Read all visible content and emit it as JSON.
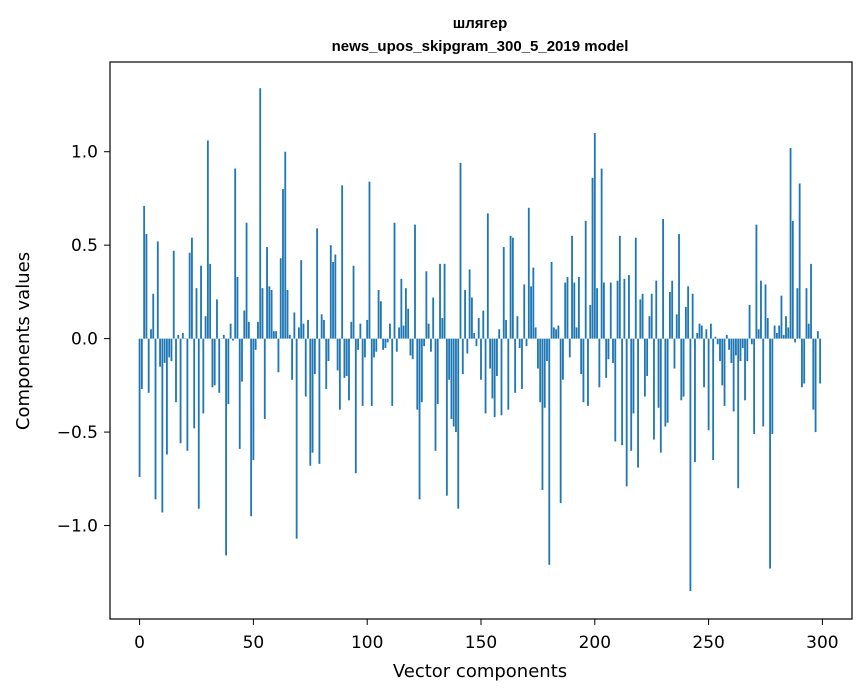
{
  "chart_data": {
    "type": "bar",
    "title": "шлягер",
    "subtitle": "news_upos_skipgram_300_5_2019 model",
    "xlabel": "Vector components",
    "ylabel": "Components values",
    "xlim": [
      -13,
      313
    ],
    "ylim": [
      -1.5,
      1.48
    ],
    "xticks": [
      0,
      50,
      100,
      150,
      200,
      250,
      300
    ],
    "xtick_labels": [
      "0",
      "50",
      "100",
      "150",
      "200",
      "250",
      "300"
    ],
    "yticks": [
      -1.0,
      -0.5,
      0.0,
      0.5,
      1.0
    ],
    "ytick_labels": [
      "−1.0",
      "−0.5",
      "0.0",
      "0.5",
      "1.0"
    ],
    "bar_color": "#1f77b4",
    "values": [
      -0.74,
      -0.27,
      0.71,
      0.56,
      -0.29,
      0.05,
      0.24,
      -0.86,
      0.52,
      -0.15,
      -0.93,
      -0.13,
      -0.62,
      -0.1,
      -0.12,
      0.47,
      -0.34,
      0.02,
      -0.56,
      0.03,
      0.0,
      -0.6,
      0.46,
      0.54,
      -0.48,
      0.27,
      -0.91,
      0.39,
      -0.4,
      0.12,
      1.06,
      0.4,
      -0.26,
      -0.25,
      0.21,
      -0.29,
      0.0,
      0.02,
      -1.16,
      -0.35,
      0.08,
      -0.01,
      0.91,
      0.33,
      -0.59,
      -0.23,
      0.15,
      0.62,
      0.09,
      -0.95,
      -0.65,
      -0.06,
      0.09,
      1.34,
      0.27,
      -0.43,
      0.49,
      0.28,
      0.26,
      0.04,
      0.04,
      -0.18,
      0.43,
      0.8,
      1.0,
      0.26,
      0.02,
      -0.22,
      0.14,
      -1.07,
      0.06,
      0.42,
      0.08,
      -0.31,
      0.1,
      -0.68,
      -0.61,
      -0.19,
      0.59,
      -0.67,
      0.13,
      0.1,
      -0.27,
      -0.12,
      0.5,
      0.41,
      0.45,
      -0.17,
      -0.38,
      0.82,
      -0.21,
      -0.2,
      -0.33,
      0.09,
      0.39,
      -0.72,
      -0.06,
      0.08,
      -0.36,
      -0.1,
      0.1,
      0.84,
      -0.36,
      -0.1,
      -0.07,
      0.26,
      0.2,
      -0.06,
      -0.05,
      -0.02,
      0.08,
      -0.36,
      0.62,
      -0.07,
      0.06,
      0.32,
      0.07,
      0.27,
      0.16,
      -0.09,
      -0.11,
      0.61,
      -0.38,
      -0.86,
      -0.34,
      -0.04,
      0.36,
      0.08,
      -0.07,
      0.22,
      -0.6,
      -0.35,
      0.4,
      0.11,
      0.4,
      -0.84,
      -0.22,
      -0.43,
      -0.47,
      -0.5,
      -0.91,
      0.94,
      -0.19,
      0.26,
      -0.08,
      0.37,
      0.22,
      0.03,
      -0.04,
      0.11,
      -0.22,
      0.15,
      -0.4,
      0.67,
      -0.16,
      -0.32,
      -0.42,
      -0.2,
      0.05,
      -0.41,
      0.49,
      0.1,
      -0.38,
      0.55,
      0.54,
      -0.29,
      0.12,
      -0.05,
      -0.27,
      0.29,
      -0.04,
      0.7,
      0.28,
      0.38,
      0.06,
      -0.16,
      -0.34,
      -0.81,
      -0.37,
      -0.12,
      -1.21,
      0.41,
      0.06,
      0.05,
      0.07,
      -0.88,
      -0.22,
      0.3,
      0.33,
      -0.1,
      0.55,
      0.3,
      0.06,
      0.33,
      -0.19,
      -0.34,
      0.63,
      -0.36,
      0.18,
      0.86,
      1.1,
      0.27,
      -0.26,
      0.91,
      0.3,
      -0.21,
      -0.11,
      0.3,
      -0.13,
      -0.55,
      0.31,
      0.55,
      -0.57,
      0.32,
      -0.79,
      0.34,
      -0.6,
      -0.4,
      0.54,
      -0.69,
      0.21,
      0.24,
      -0.31,
      -0.2,
      0.12,
      0.24,
      -0.54,
      0.31,
      -0.37,
      -0.61,
      0.64,
      -0.47,
      -0.45,
      0.25,
      0.31,
      -0.16,
      0.13,
      0.56,
      -0.33,
      -0.31,
      0.17,
      0.28,
      -1.35,
      0.24,
      -0.66,
      0.03,
      0.08,
      0.07,
      -0.26,
      0.05,
      -0.49,
      0.08,
      -0.65,
      0.01,
      -0.03,
      -0.12,
      -0.25,
      -0.36,
      0.02,
      -0.06,
      -0.13,
      -0.39,
      -0.09,
      -0.8,
      -0.12,
      -0.05,
      -0.33,
      -0.12,
      0.18,
      -0.03,
      -0.51,
      0.61,
      0.05,
      0.31,
      -0.47,
      0.29,
      0.11,
      -1.23,
      -0.51,
      0.07,
      0.03,
      0.07,
      0.23,
      0.02,
      0.12,
      0.06,
      1.02,
      0.63,
      -0.02,
      0.27,
      0.83,
      -0.26,
      -0.24,
      0.27,
      0.08,
      0.4,
      -0.38,
      -0.5,
      0.04,
      -0.24
    ]
  }
}
